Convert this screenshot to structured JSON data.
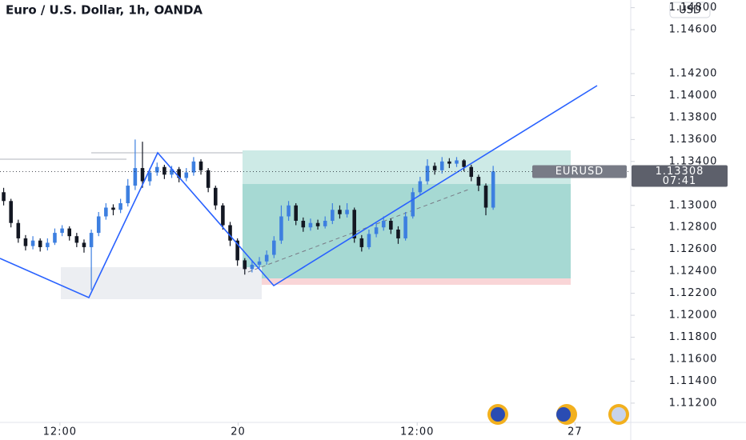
{
  "chart_data": {
    "type": "candlestick",
    "title": "Euro / U.S. Dollar, 1h, OANDA",
    "currency": "USD",
    "symbol": "EURUSD",
    "last_price": 1.13308,
    "countdown": "07:41",
    "up_color": "#3d7fe0",
    "down_color": "#131722",
    "open": [
      1.1312,
      1.1304,
      1.1284,
      1.127,
      1.1263,
      1.1268,
      1.1262,
      1.1266,
      1.1275,
      1.1279,
      1.1272,
      1.1266,
      1.1262,
      1.1275,
      1.129,
      1.1298,
      1.1296,
      1.1302,
      1.1318,
      1.1334,
      1.1322,
      1.133,
      1.1335,
      1.1328,
      1.1333,
      1.1325,
      1.133,
      1.134,
      1.1332,
      1.1316,
      1.13,
      1.1282,
      1.1268,
      1.125,
      1.1242,
      1.1246,
      1.1249,
      1.1255,
      1.1268,
      1.129,
      1.13,
      1.1286,
      1.128,
      1.1284,
      1.1281,
      1.1286,
      1.1296,
      1.1292,
      1.1296,
      1.127,
      1.1262,
      1.1274,
      1.128,
      1.1286,
      1.1278,
      1.127,
      1.129,
      1.1312,
      1.1322,
      1.1336,
      1.1332,
      1.134,
      1.1338,
      1.1341,
      1.1335,
      1.1326,
      1.1318,
      1.1298
    ],
    "high": [
      1.1316,
      1.1306,
      1.1287,
      1.1273,
      1.1272,
      1.127,
      1.127,
      1.1279,
      1.1282,
      1.1281,
      1.1275,
      1.1269,
      1.1278,
      1.1294,
      1.1302,
      1.1301,
      1.1306,
      1.1324,
      1.136,
      1.1358,
      1.1334,
      1.1339,
      1.1337,
      1.1336,
      1.1335,
      1.1334,
      1.1344,
      1.1342,
      1.1334,
      1.1318,
      1.1302,
      1.1285,
      1.127,
      1.1252,
      1.125,
      1.1253,
      1.1259,
      1.1272,
      1.13,
      1.1304,
      1.1302,
      1.1289,
      1.1288,
      1.1287,
      1.129,
      1.1302,
      1.13,
      1.1302,
      1.1298,
      1.1273,
      1.1278,
      1.1284,
      1.129,
      1.1288,
      1.1281,
      1.1294,
      1.1316,
      1.1326,
      1.1342,
      1.1339,
      1.1344,
      1.1343,
      1.1344,
      1.1342,
      1.1337,
      1.1328,
      1.132,
      1.1336
    ],
    "low": [
      1.13,
      1.128,
      1.1266,
      1.1259,
      1.126,
      1.1258,
      1.1259,
      1.1264,
      1.1272,
      1.1268,
      1.1262,
      1.1257,
      1.1223,
      1.1272,
      1.1287,
      1.1291,
      1.1293,
      1.1299,
      1.1314,
      1.1316,
      1.1318,
      1.1327,
      1.1324,
      1.1325,
      1.1321,
      1.1322,
      1.1327,
      1.1328,
      1.1312,
      1.1296,
      1.1278,
      1.1263,
      1.1245,
      1.1237,
      1.1239,
      1.1243,
      1.1246,
      1.1252,
      1.1265,
      1.1286,
      1.1282,
      1.1276,
      1.1277,
      1.1278,
      1.1279,
      1.1283,
      1.1288,
      1.1289,
      1.1266,
      1.1258,
      1.126,
      1.1271,
      1.1277,
      1.1274,
      1.1265,
      1.1268,
      1.1288,
      1.1309,
      1.1319,
      1.1328,
      1.1329,
      1.1334,
      1.1335,
      1.1331,
      1.1322,
      1.1313,
      1.1291,
      1.1296
    ],
    "close": [
      1.1304,
      1.1284,
      1.127,
      1.1263,
      1.1268,
      1.1262,
      1.1266,
      1.1275,
      1.1279,
      1.1272,
      1.1266,
      1.1262,
      1.1275,
      1.129,
      1.1298,
      1.1296,
      1.1302,
      1.1318,
      1.1334,
      1.1322,
      1.133,
      1.1335,
      1.1328,
      1.1333,
      1.1325,
      1.133,
      1.134,
      1.1332,
      1.1316,
      1.13,
      1.1282,
      1.1268,
      1.125,
      1.1242,
      1.1246,
      1.1249,
      1.1255,
      1.1268,
      1.129,
      1.13,
      1.1286,
      1.128,
      1.1284,
      1.1281,
      1.1286,
      1.1296,
      1.1292,
      1.1296,
      1.127,
      1.1262,
      1.1274,
      1.128,
      1.1286,
      1.1278,
      1.127,
      1.129,
      1.1312,
      1.1322,
      1.1336,
      1.1332,
      1.134,
      1.1338,
      1.1341,
      1.1335,
      1.1326,
      1.1318,
      1.1298,
      1.1331
    ],
    "xlim": [
      0,
      86
    ],
    "xticks": [
      {
        "value": 8.2,
        "label": "12:00"
      },
      {
        "value": 32.6,
        "label": "20"
      },
      {
        "value": 57.1,
        "label": "12:00"
      },
      {
        "value": 78.7,
        "label": "27"
      }
    ],
    "ylim": [
      1.1101,
      1.1487
    ],
    "yticks": [
      {
        "value": 1.148,
        "label": "1.14800"
      },
      {
        "value": 1.146,
        "label": "1.14600"
      },
      {
        "value": 1.142,
        "label": "1.14200"
      },
      {
        "value": 1.14,
        "label": "1.14000"
      },
      {
        "value": 1.138,
        "label": "1.13800"
      },
      {
        "value": 1.136,
        "label": "1.13600"
      },
      {
        "value": 1.134,
        "label": "1.13400"
      },
      {
        "value": 1.13,
        "label": "1.13000"
      },
      {
        "value": 1.128,
        "label": "1.12800"
      },
      {
        "value": 1.126,
        "label": "1.12600"
      },
      {
        "value": 1.124,
        "label": "1.12400"
      },
      {
        "value": 1.122,
        "label": "1.12200"
      },
      {
        "value": 1.12,
        "label": "1.12000"
      },
      {
        "value": 1.118,
        "label": "1.11800"
      },
      {
        "value": 1.116,
        "label": "1.11600"
      },
      {
        "value": 1.114,
        "label": "1.11400"
      },
      {
        "value": 1.112,
        "label": "1.11200"
      }
    ]
  }
}
